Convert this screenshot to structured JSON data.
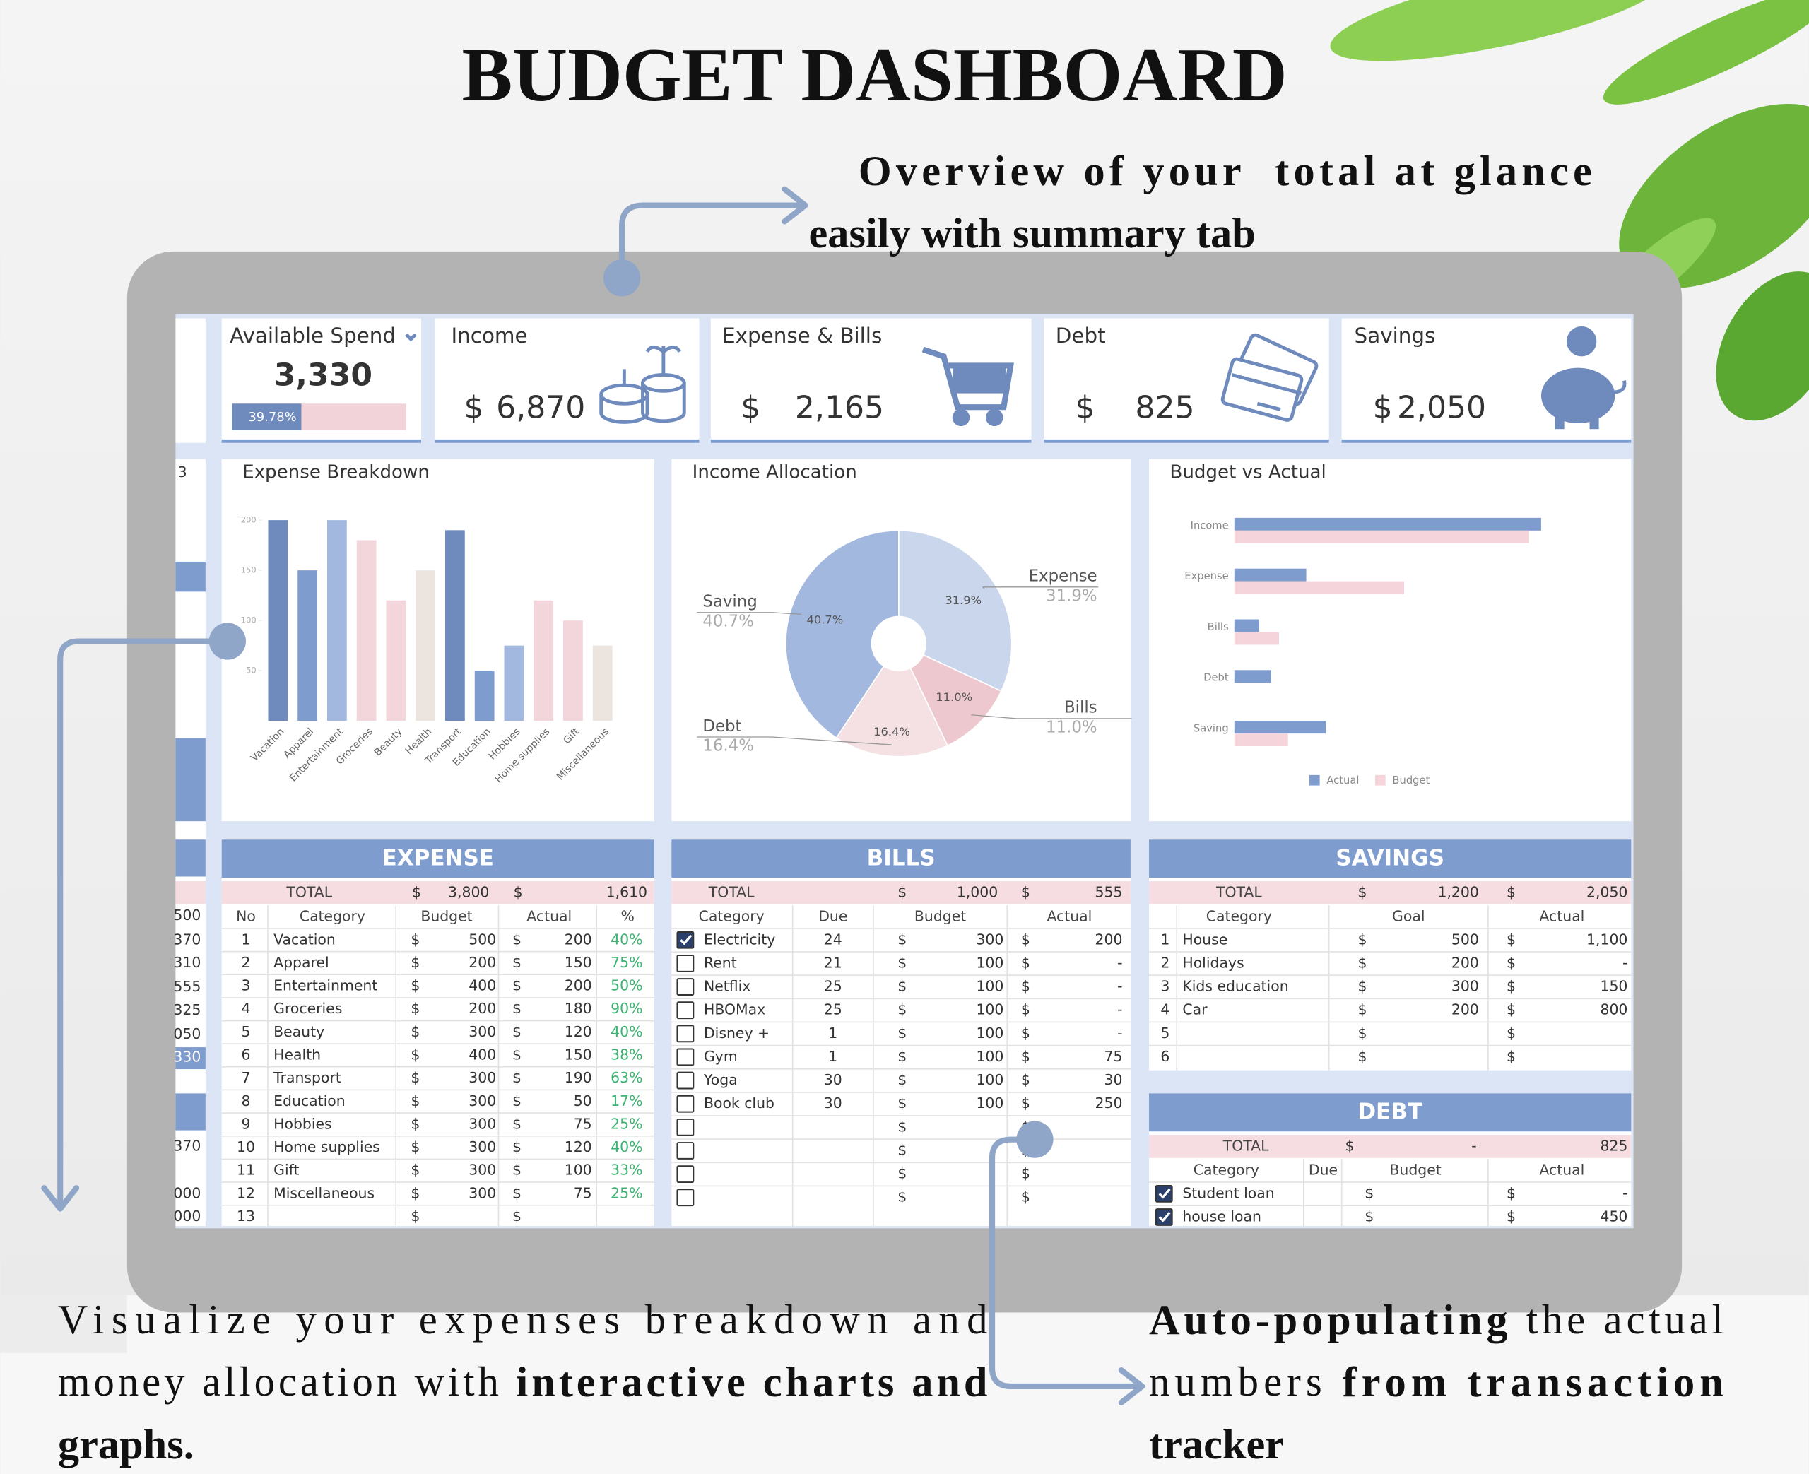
{
  "header": {
    "title": "BUDGET DASHBOARD"
  },
  "callouts": {
    "top": [
      "Overview of your  total at glance",
      "easily with summary tab"
    ],
    "left": [
      [
        {
          "text": "Visualize your expenses breakdown and",
          "bold": false
        }
      ],
      [
        {
          "text": "money allocation with ",
          "bold": false
        },
        {
          "text": "interactive charts and",
          "bold": true
        }
      ],
      [
        {
          "text": "graphs.",
          "bold": true
        }
      ]
    ],
    "right": [
      [
        {
          "text": "Auto-populating",
          "bold": true
        },
        {
          "text": " the actual",
          "bold": false
        }
      ],
      [
        {
          "text": "numbers ",
          "bold": false
        },
        {
          "text": "from transaction",
          "bold": true
        }
      ],
      [
        {
          "text": "tracker",
          "bold": true
        }
      ]
    ]
  },
  "currency": "$",
  "cards": {
    "available": {
      "label": "Available Spend",
      "value": "3,330",
      "progress": 39.78,
      "progress_label": "39.78%"
    },
    "income": {
      "label": "Income",
      "value": "6,870"
    },
    "expense": {
      "label": "Expense & Bills",
      "value": "2,165"
    },
    "debt": {
      "label": "Debt",
      "value": "825"
    },
    "savings": {
      "label": "Savings",
      "value": "2,050"
    }
  },
  "sidebar": {
    "top": "3",
    "values": [
      "500",
      "370",
      "310",
      "555",
      "325",
      "050",
      "330",
      "370",
      "000",
      "000"
    ]
  },
  "chart_data": [
    {
      "type": "bar",
      "title": "Expense Breakdown",
      "categories": [
        "Vacation",
        "Apparel",
        "Entertainment",
        "Groceries",
        "Beauty",
        "Health",
        "Transport",
        "Education",
        "Hobbies",
        "Home supplies",
        "Gift",
        "Miscellaneous"
      ],
      "values": [
        200,
        150,
        200,
        180,
        120,
        150,
        190,
        50,
        75,
        120,
        100,
        75
      ],
      "colors": [
        "#6f8bbd",
        "#7f9ccf",
        "#a3b8de",
        "#f2d6dc",
        "#f2d6dc",
        "#ece5df",
        "#6f8bbd",
        "#7f9ccf",
        "#a3b8de",
        "#f2d6dc",
        "#f2d6dc",
        "#ece5df"
      ],
      "ylim": [
        0,
        200
      ],
      "yticks": [
        50,
        100,
        150,
        200
      ]
    },
    {
      "type": "pie",
      "title": "Income Allocation",
      "categories": [
        "Expense",
        "Bills",
        "Debt",
        "Saving"
      ],
      "values": [
        31.9,
        11.0,
        16.4,
        40.7
      ],
      "value_labels": [
        "31.9%",
        "11.0%",
        "16.4%",
        "40.7%"
      ],
      "colors": [
        "#c9d6ec",
        "#edc9cf",
        "#f5e1e4",
        "#a3b8de"
      ]
    },
    {
      "type": "hbar",
      "title": "Budget vs Actual",
      "categories": [
        "Income",
        "Expense",
        "Bills",
        "Debt",
        "Saving"
      ],
      "series": [
        {
          "name": "Actual",
          "color": "#7f9ccf",
          "values": [
            6870,
            1610,
            555,
            825,
            2050
          ]
        },
        {
          "name": "Budget",
          "color": "#f5d5db",
          "values": [
            6600,
            3800,
            1000,
            null,
            1200
          ]
        }
      ],
      "xlim": [
        0,
        7000
      ],
      "legend": "bottom"
    }
  ],
  "tables": {
    "expense": {
      "title": "EXPENSE",
      "total": {
        "label": "TOTAL",
        "budget": "3,800",
        "actual": "1,610"
      },
      "columns": [
        "No",
        "Category",
        "Budget",
        "Actual",
        "%"
      ],
      "rows": [
        {
          "no": "1",
          "category": "Vacation",
          "budget": "500",
          "actual": "200",
          "pct": "40%"
        },
        {
          "no": "2",
          "category": "Apparel",
          "budget": "200",
          "actual": "150",
          "pct": "75%"
        },
        {
          "no": "3",
          "category": "Entertainment",
          "budget": "400",
          "actual": "200",
          "pct": "50%"
        },
        {
          "no": "4",
          "category": "Groceries",
          "budget": "200",
          "actual": "180",
          "pct": "90%"
        },
        {
          "no": "5",
          "category": "Beauty",
          "budget": "300",
          "actual": "120",
          "pct": "40%"
        },
        {
          "no": "6",
          "category": "Health",
          "budget": "400",
          "actual": "150",
          "pct": "38%"
        },
        {
          "no": "7",
          "category": "Transport",
          "budget": "300",
          "actual": "190",
          "pct": "63%"
        },
        {
          "no": "8",
          "category": "Education",
          "budget": "300",
          "actual": "50",
          "pct": "17%"
        },
        {
          "no": "9",
          "category": "Hobbies",
          "budget": "300",
          "actual": "75",
          "pct": "25%"
        },
        {
          "no": "10",
          "category": "Home supplies",
          "budget": "300",
          "actual": "120",
          "pct": "40%"
        },
        {
          "no": "11",
          "category": "Gift",
          "budget": "300",
          "actual": "100",
          "pct": "33%"
        },
        {
          "no": "12",
          "category": "Miscellaneous",
          "budget": "300",
          "actual": "75",
          "pct": "25%"
        },
        {
          "no": "13"
        }
      ]
    },
    "bills": {
      "title": "BILLS",
      "total": {
        "label": "TOTAL",
        "budget": "1,000",
        "actual": "555"
      },
      "columns": [
        "Category",
        "Due",
        "Budget",
        "Actual"
      ],
      "rows": [
        {
          "checked": true,
          "category": "Electricity",
          "due": "24",
          "budget": "300",
          "actual": "200"
        },
        {
          "checked": false,
          "category": "Rent",
          "due": "21",
          "budget": "100",
          "actual": "-"
        },
        {
          "checked": false,
          "category": "Netflix",
          "due": "25",
          "budget": "100",
          "actual": "-"
        },
        {
          "checked": false,
          "category": "HBOMax",
          "due": "25",
          "budget": "100",
          "actual": "-"
        },
        {
          "checked": false,
          "category": "Disney +",
          "due": "1",
          "budget": "100",
          "actual": "-"
        },
        {
          "checked": false,
          "category": "Gym",
          "due": "1",
          "budget": "100",
          "actual": "75"
        },
        {
          "checked": false,
          "category": "Yoga",
          "due": "30",
          "budget": "100",
          "actual": "30"
        },
        {
          "checked": false,
          "category": "Book club",
          "due": "30",
          "budget": "100",
          "actual": "250"
        },
        {
          "checked": false
        },
        {
          "checked": false
        },
        {
          "checked": false
        },
        {
          "checked": false
        }
      ]
    },
    "savings": {
      "title": "SAVINGS",
      "total": {
        "label": "TOTAL",
        "budget": "1,200",
        "actual": "2,050"
      },
      "columns": [
        "Category",
        "Goal",
        "Actual"
      ],
      "rows": [
        {
          "no": "1",
          "category": "House",
          "goal": "500",
          "actual": "1,100"
        },
        {
          "no": "2",
          "category": "Holidays",
          "goal": "200",
          "actual": "-"
        },
        {
          "no": "3",
          "category": "Kids education",
          "goal": "300",
          "actual": "150"
        },
        {
          "no": "4",
          "category": "Car",
          "goal": "200",
          "actual": "800"
        },
        {
          "no": "5"
        },
        {
          "no": "6"
        }
      ]
    },
    "debt": {
      "title": "DEBT",
      "total": {
        "label": "TOTAL",
        "budget": "-",
        "actual": "825"
      },
      "columns": [
        "Category",
        "Due",
        "Budget",
        "Actual"
      ],
      "rows": [
        {
          "checked": true,
          "category": "Student loan",
          "actual": "-"
        },
        {
          "checked": true,
          "category": "house loan",
          "actual": "450"
        }
      ]
    }
  }
}
